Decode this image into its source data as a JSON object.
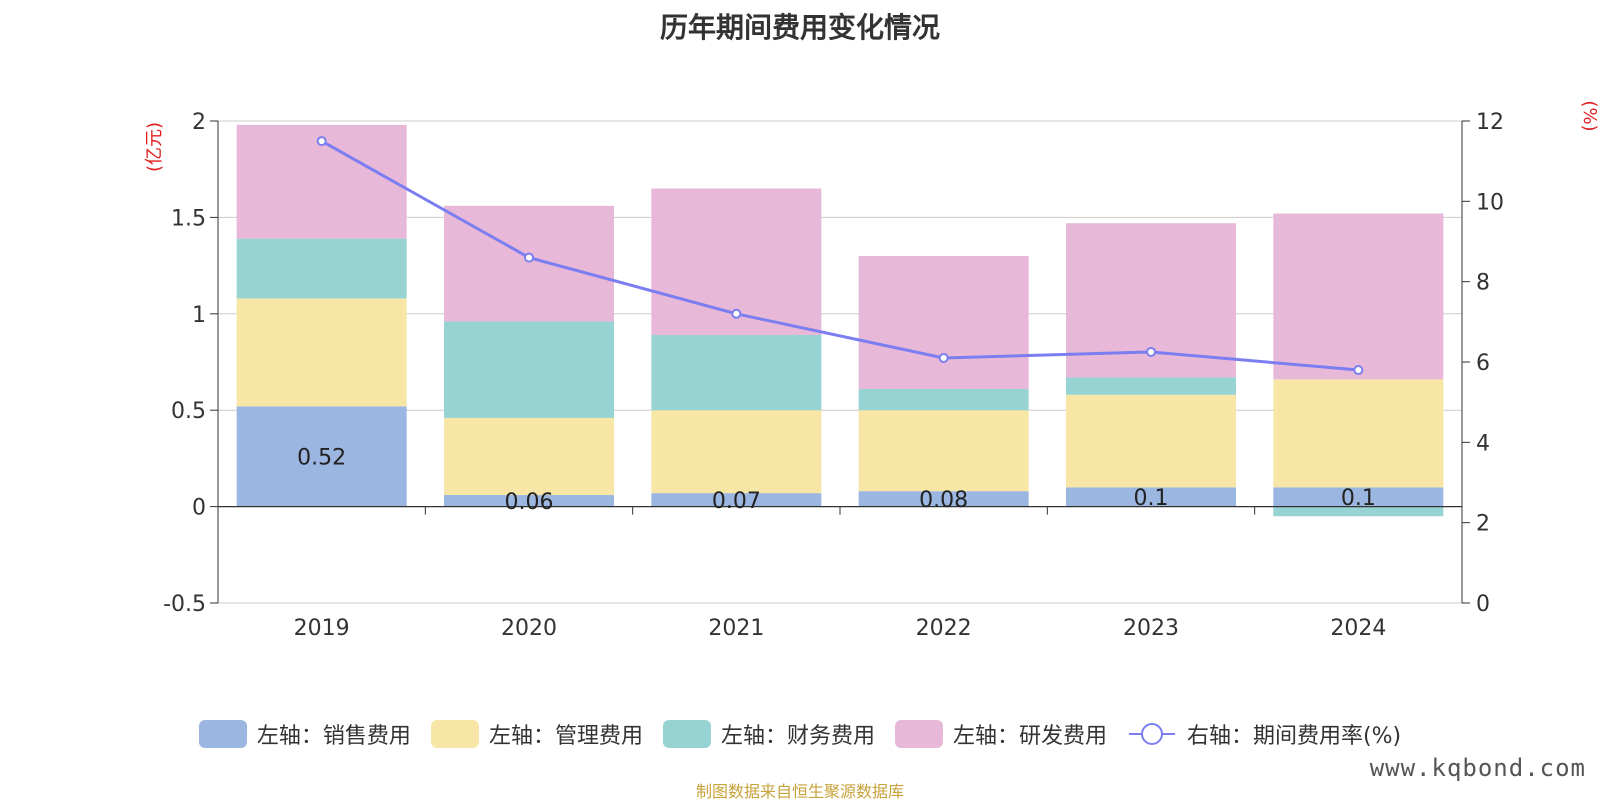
{
  "chart_data": {
    "type": "bar",
    "title": "历年期间费用变化情况",
    "categories": [
      "2019",
      "2020",
      "2021",
      "2022",
      "2023",
      "2024"
    ],
    "left_axis": {
      "unit_label": "(亿元)",
      "ylim": [
        -0.5,
        2
      ],
      "ticks": [
        "2",
        "1.5",
        "1",
        "0.5",
        "0",
        "-0.5"
      ]
    },
    "right_axis": {
      "unit_label": "(%)",
      "ylim": [
        0,
        12
      ],
      "ticks": [
        "12",
        "10",
        "8",
        "6",
        "4",
        "2",
        "0"
      ]
    },
    "stacked": true,
    "series": [
      {
        "name": "左轴：销售费用",
        "axis": "left",
        "color": "#9bb6e0",
        "values": [
          0.52,
          0.06,
          0.07,
          0.08,
          0.1,
          0.1
        ],
        "labels": [
          "0.52",
          "0.06",
          "0.07",
          "0.08",
          "0.1",
          "0.1"
        ]
      },
      {
        "name": "左轴：管理费用",
        "axis": "left",
        "color": "#f7e6a6",
        "values": [
          0.56,
          0.4,
          0.43,
          0.42,
          0.48,
          0.56
        ]
      },
      {
        "name": "左轴：财务费用",
        "axis": "left",
        "color": "#98d3d4",
        "values": [
          0.31,
          0.5,
          0.39,
          0.11,
          0.09,
          -0.05
        ]
      },
      {
        "name": "左轴：研发费用",
        "axis": "left",
        "color": "#e8b8d9",
        "values": [
          0.59,
          0.6,
          0.76,
          0.69,
          0.8,
          0.86
        ]
      },
      {
        "name": "右轴：期间费用率(%)",
        "axis": "right",
        "type": "line",
        "color": "#7b7ef0",
        "values": [
          11.5,
          8.6,
          7.2,
          6.1,
          6.25,
          5.8
        ]
      }
    ],
    "grid": true,
    "legend_position": "bottom"
  },
  "footer": {
    "source": "制图数据来自恒生聚源数据库",
    "watermark": "www.kqbond.com"
  }
}
